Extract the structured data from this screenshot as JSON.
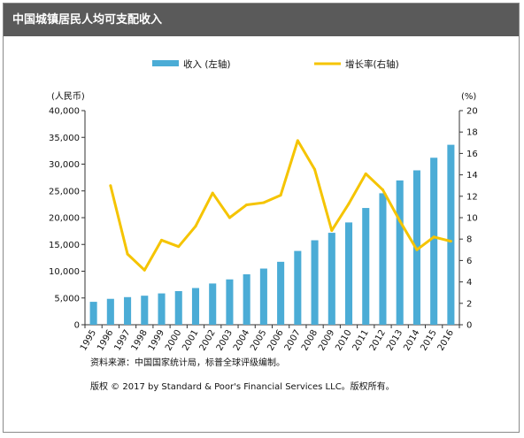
{
  "header": {
    "title": "中国城镇居民人均可支配收入"
  },
  "notes": {
    "source": "资料来源：中国国家统计局，标普全球评级编制。",
    "copyright": "版权 © 2017 by Standard & Poor's Financial Services LLC。版权所有。"
  },
  "colors": {
    "bar": "#4bacd6",
    "line": "#f5c400",
    "axis": "#333333"
  },
  "chart_data": {
    "type": "bar",
    "title": "中国城镇居民人均可支配收入",
    "ylabel_left": "(人民币)",
    "ylabel_right": "(%)",
    "categories": [
      "1995",
      "1996",
      "1997",
      "1998",
      "1999",
      "2000",
      "2001",
      "2002",
      "2003",
      "2004",
      "2005",
      "2006",
      "2007",
      "2008",
      "2009",
      "2010",
      "2011",
      "2012",
      "2013",
      "2014",
      "2015",
      "2016"
    ],
    "left_ticks": [
      "0",
      "5,000",
      "10,000",
      "15,000",
      "20,000",
      "25,000",
      "30,000",
      "35,000",
      "40,000"
    ],
    "right_ticks": [
      "0",
      "2",
      "4",
      "6",
      "8",
      "10",
      "12",
      "14",
      "16",
      "18",
      "20"
    ],
    "ylim_left": [
      0,
      40000
    ],
    "ylim_right": [
      0,
      20
    ],
    "legend_position": "top-center",
    "series": [
      {
        "name": "收入 (左轴)",
        "type": "bar",
        "axis": "left",
        "values": [
          4283,
          4839,
          5160,
          5425,
          5854,
          6280,
          6860,
          7703,
          8472,
          9422,
          10493,
          11759,
          13786,
          15781,
          17175,
          19109,
          21810,
          24565,
          26955,
          28844,
          31195,
          33616
        ]
      },
      {
        "name": "增长率(右轴)",
        "type": "line",
        "axis": "right",
        "values": [
          null,
          13.0,
          6.6,
          5.1,
          7.9,
          7.3,
          9.2,
          12.3,
          10.0,
          11.2,
          11.4,
          12.1,
          17.2,
          14.5,
          8.8,
          11.3,
          14.1,
          12.6,
          9.7,
          7.0,
          8.2,
          7.8
        ]
      }
    ]
  }
}
